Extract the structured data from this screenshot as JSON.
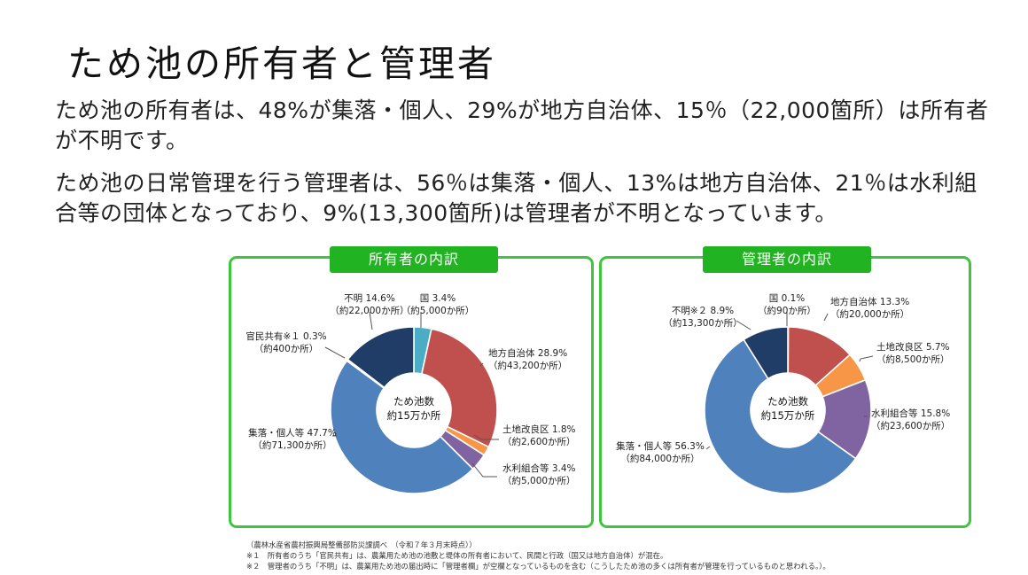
{
  "title": "ため池の所有者と管理者",
  "paragraph1": "ため池の所有者は、48%が集落・個人、29%が地方自治体、15％（22,000箇所）は所有者が不明です。",
  "paragraph2": "ため池の日常管理を行う管理者は、56％は集落・個人、13%は地方自治体、21％は水利組合等の団体となっており、9%(13,300箇所)は管理者が不明となっています。",
  "chart_data": [
    {
      "type": "pie",
      "title": "所有者の内訳",
      "center_label": [
        "ため池数",
        "約15万か所"
      ],
      "slices": [
        {
          "label": "国",
          "value": 3.4,
          "count": "約5,000か所",
          "color": "#4bacc6"
        },
        {
          "label": "地方自治体",
          "value": 28.9,
          "count": "約43,200か所",
          "color": "#c0504d"
        },
        {
          "label": "土地改良区",
          "value": 1.8,
          "count": "約2,600か所",
          "color": "#f79646"
        },
        {
          "label": "水利組合等",
          "value": 3.4,
          "count": "約5,000か所",
          "color": "#8064a2"
        },
        {
          "label": "集落・個人等",
          "value": 47.7,
          "count": "約71,300か所",
          "color": "#4f81bd"
        },
        {
          "label": "官民共有※１",
          "value": 0.3,
          "count": "約400か所",
          "color": "#d9d9d9"
        },
        {
          "label": "不明",
          "value": 14.6,
          "count": "約22,000か所",
          "color": "#1f3d66"
        }
      ]
    },
    {
      "type": "pie",
      "title": "管理者の内訳",
      "center_label": [
        "ため池数",
        "約15万か所"
      ],
      "slices": [
        {
          "label": "国",
          "value": 0.1,
          "count": "約90か所",
          "color": "#4bacc6"
        },
        {
          "label": "地方自治体",
          "value": 13.3,
          "count": "約20,000か所",
          "color": "#c0504d"
        },
        {
          "label": "土地改良区",
          "value": 5.7,
          "count": "約8,500か所",
          "color": "#f79646"
        },
        {
          "label": "水利組合等",
          "value": 15.8,
          "count": "約23,600か所",
          "color": "#8064a2"
        },
        {
          "label": "集落・個人等",
          "value": 56.3,
          "count": "約84,000か所",
          "color": "#4f81bd"
        },
        {
          "label": "不明※２",
          "value": 8.9,
          "count": "約13,300か所",
          "color": "#1f3d66"
        }
      ]
    }
  ],
  "footnotes": {
    "source": "（農林水産省農村振興局整備部防災課調べ　（令和７年３月末時点））",
    "note1": "※１　所有者のうち「官民共有」は、農業用ため池の池敷と堤体の所有者において、民間と行政（国又は地方自治体）が混在。",
    "note2": "※２　管理者のうち「不明」は、農業用ため池の届出時に「管理者欄」が空欄となっているものを含む（こうしたため池の多くは所有者が管理を行っているものと思われる。）。"
  }
}
